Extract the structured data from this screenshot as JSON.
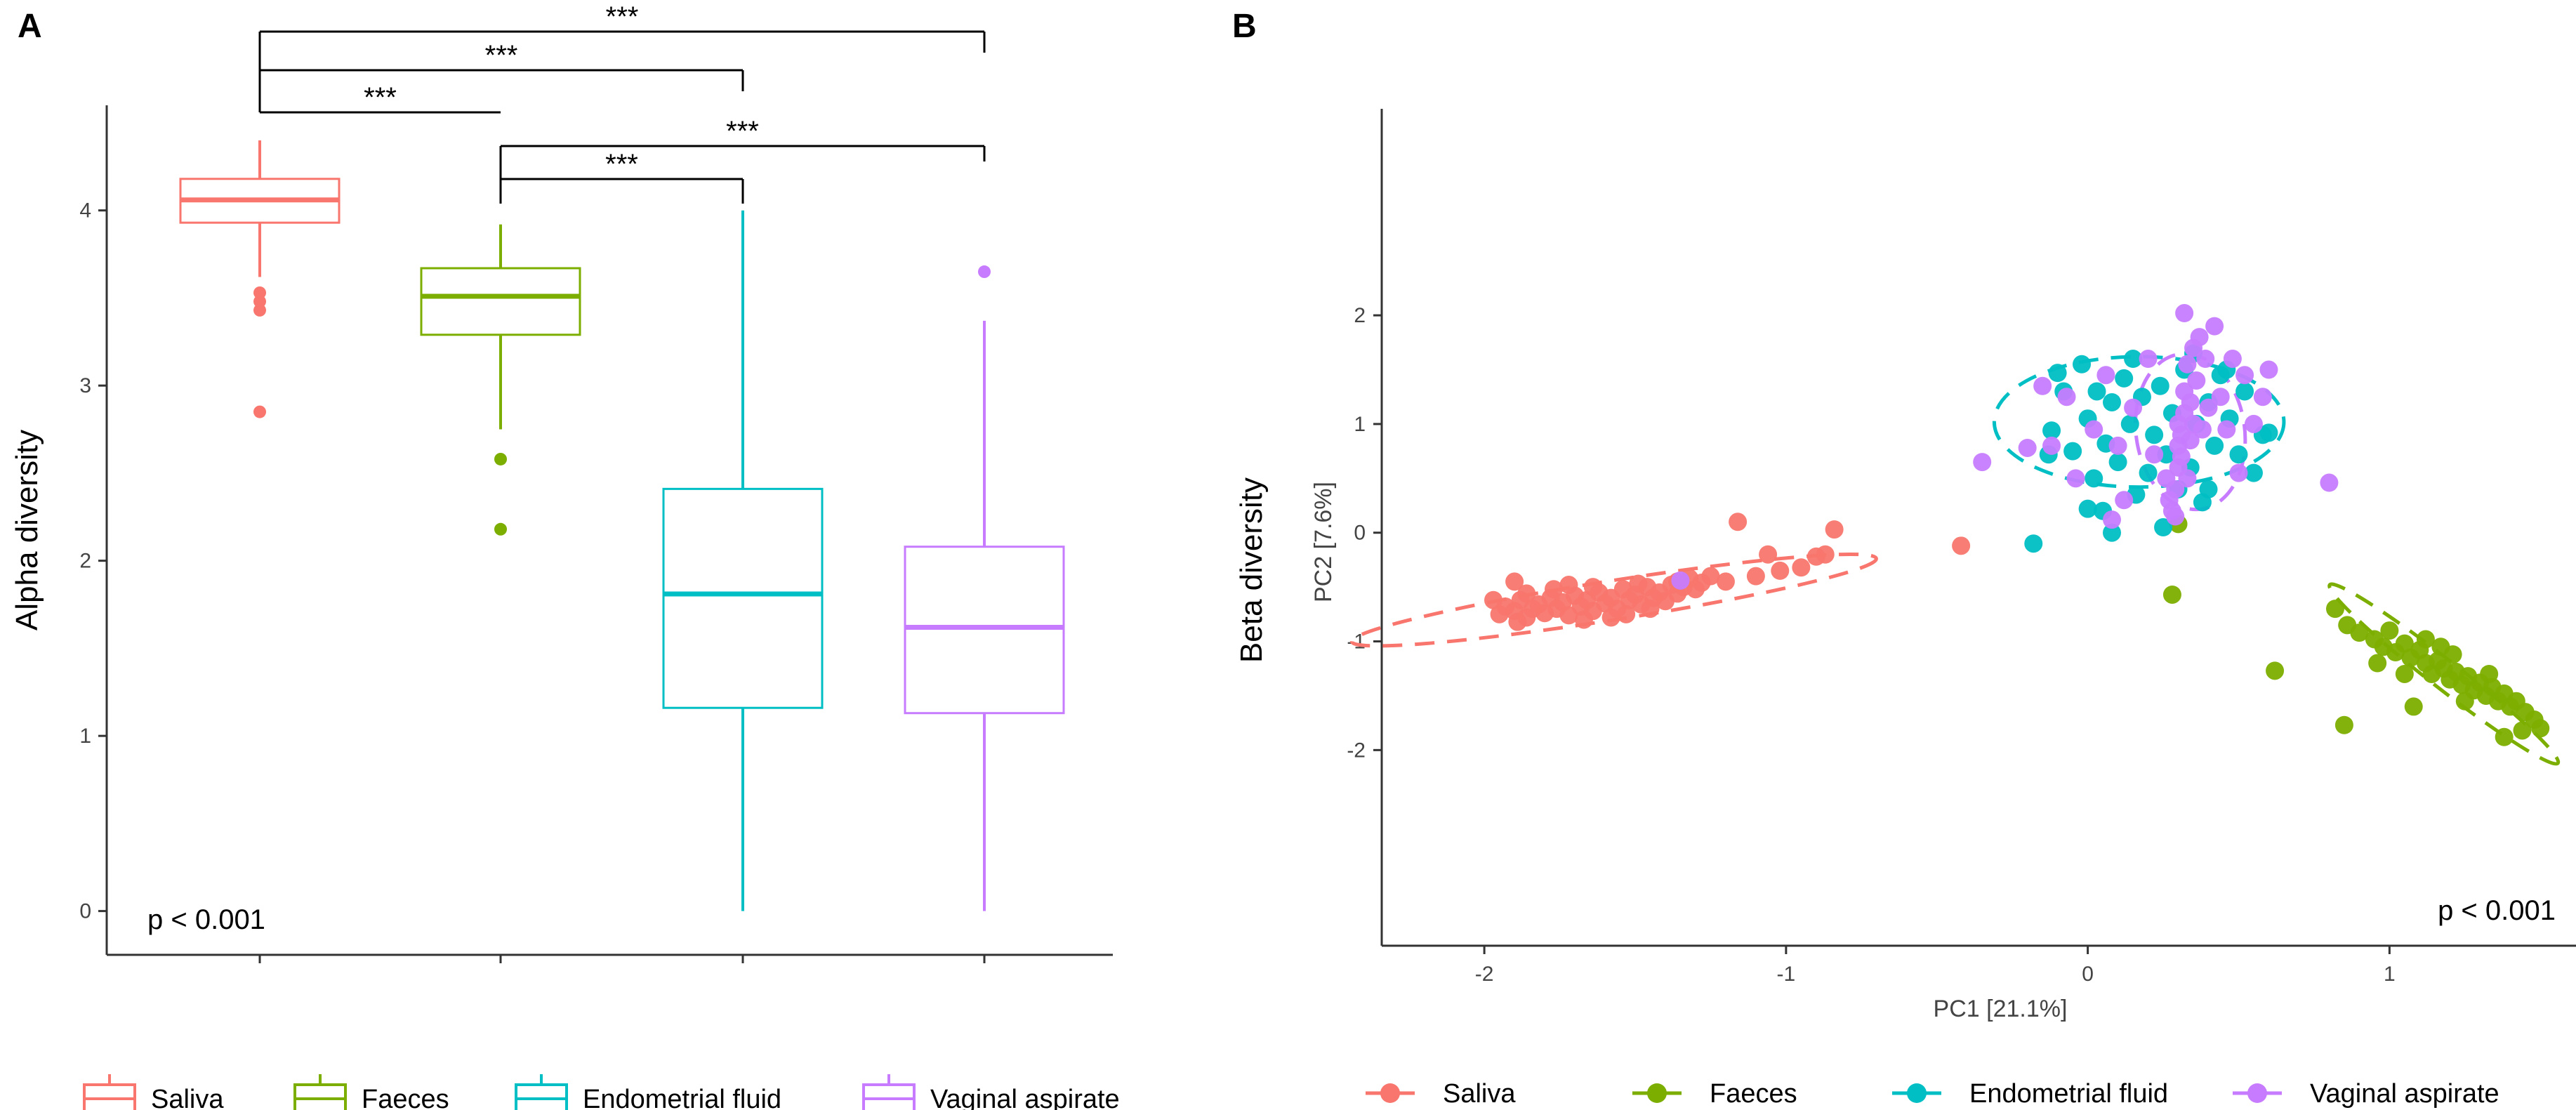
{
  "colors": {
    "saliva": "#f8766d",
    "faeces": "#7cae00",
    "endometrial": "#00bfc4",
    "vaginal": "#c77cff"
  },
  "chart_data": [
    {
      "panel": "A",
      "type": "box",
      "ylabel": "Alpha diversity",
      "xlabel": "",
      "ylim": [
        -0.25,
        4.6
      ],
      "yticks": [
        0,
        1,
        2,
        3,
        4
      ],
      "annotation": "p < 0.001",
      "categories": [
        "Saliva",
        "Faeces",
        "Endometrial fluid",
        "Vaginal aspirate"
      ],
      "color_keys": [
        "saliva",
        "faeces",
        "endometrial",
        "vaginal"
      ],
      "boxes": [
        {
          "name": "Saliva",
          "min": 3.62,
          "q1": 3.93,
          "median": 4.06,
          "q3": 4.18,
          "max": 4.4,
          "outliers": [
            3.53,
            3.48,
            3.43,
            2.85
          ]
        },
        {
          "name": "Faeces",
          "min": 2.75,
          "q1": 3.29,
          "median": 3.51,
          "q3": 3.67,
          "max": 3.92,
          "outliers": [
            2.58,
            2.18
          ]
        },
        {
          "name": "Endometrial fluid",
          "min": 0.0,
          "q1": 1.16,
          "median": 1.81,
          "q3": 2.41,
          "max": 4.0,
          "outliers": []
        },
        {
          "name": "Vaginal aspirate",
          "min": 0.0,
          "q1": 1.13,
          "median": 1.62,
          "q3": 2.08,
          "max": 3.37,
          "outliers": [
            3.65
          ]
        }
      ],
      "comparisons": [
        {
          "from": 0,
          "to": 1,
          "label": "***"
        },
        {
          "from": 0,
          "to": 2,
          "label": "***"
        },
        {
          "from": 0,
          "to": 3,
          "label": "***"
        },
        {
          "from": 1,
          "to": 2,
          "label": "***"
        },
        {
          "from": 1,
          "to": 3,
          "label": "***"
        }
      ],
      "legend": [
        "Saliva",
        "Faeces",
        "Endometrial fluid",
        "Vaginal aspirate"
      ]
    },
    {
      "panel": "B",
      "type": "scatter",
      "ylabel": "Beta diversity",
      "xlabel": "PC1   [21.1%]",
      "ylabel_inner": "PC2   [7.6%]",
      "xlim": [
        -2.34,
        1.66
      ],
      "ylim": [
        -3.8,
        3.9
      ],
      "xticks": [
        -2,
        -1,
        0,
        1
      ],
      "yticks": [
        -2,
        -1,
        0,
        1,
        2
      ],
      "annotation": "p < 0.001",
      "legend": [
        "Saliva",
        "Faeces",
        "Endometrial fluid",
        "Vaginal aspirate"
      ],
      "series": [
        {
          "name": "Saliva",
          "color_key": "saliva",
          "ellipse": {
            "cx": -1.57,
            "cy": -0.62,
            "rx": 0.88,
            "ry": 0.18,
            "angle_deg": 9
          },
          "points": [
            [
              -1.95,
              -0.75
            ],
            [
              -1.93,
              -0.68
            ],
            [
              -1.9,
              -0.72
            ],
            [
              -1.88,
              -0.62
            ],
            [
              -1.86,
              -0.78
            ],
            [
              -1.84,
              -0.7
            ],
            [
              -1.82,
              -0.66
            ],
            [
              -1.8,
              -0.74
            ],
            [
              -1.78,
              -0.6
            ],
            [
              -1.76,
              -0.7
            ],
            [
              -1.74,
              -0.64
            ],
            [
              -1.72,
              -0.76
            ],
            [
              -1.7,
              -0.58
            ],
            [
              -1.68,
              -0.68
            ],
            [
              -1.66,
              -0.62
            ],
            [
              -1.64,
              -0.72
            ],
            [
              -1.62,
              -0.55
            ],
            [
              -1.6,
              -0.65
            ],
            [
              -1.58,
              -0.6
            ],
            [
              -1.56,
              -0.7
            ],
            [
              -1.54,
              -0.52
            ],
            [
              -1.52,
              -0.62
            ],
            [
              -1.5,
              -0.57
            ],
            [
              -1.48,
              -0.66
            ],
            [
              -1.46,
              -0.5
            ],
            [
              -1.44,
              -0.6
            ],
            [
              -1.42,
              -0.55
            ],
            [
              -1.4,
              -0.63
            ],
            [
              -1.38,
              -0.48
            ],
            [
              -1.36,
              -0.56
            ],
            [
              -1.34,
              -0.5
            ],
            [
              -1.32,
              -0.42
            ],
            [
              -1.3,
              -0.52
            ],
            [
              -1.28,
              -0.46
            ],
            [
              -1.25,
              -0.4
            ],
            [
              -1.2,
              -0.45
            ],
            [
              -1.97,
              -0.62
            ],
            [
              -1.89,
              -0.82
            ],
            [
              -1.77,
              -0.52
            ],
            [
              -1.67,
              -0.8
            ],
            [
              -1.53,
              -0.75
            ],
            [
              -1.45,
              -0.7
            ],
            [
              -1.9,
              -0.45
            ],
            [
              -1.86,
              -0.56
            ],
            [
              -1.72,
              -0.48
            ],
            [
              -1.64,
              -0.5
            ],
            [
              -1.58,
              -0.78
            ],
            [
              -1.49,
              -0.47
            ],
            [
              -1.16,
              0.1
            ],
            [
              -1.02,
              -0.35
            ],
            [
              -0.95,
              -0.32
            ],
            [
              -0.9,
              -0.22
            ],
            [
              -0.87,
              -0.2
            ],
            [
              -0.84,
              0.03
            ],
            [
              -0.42,
              -0.12
            ],
            [
              -1.36,
              -0.45
            ],
            [
              -1.1,
              -0.4
            ],
            [
              -1.06,
              -0.2
            ]
          ]
        },
        {
          "name": "Faeces",
          "color_key": "faeces",
          "ellipse": {
            "cx": 1.18,
            "cy": -1.3,
            "rx": 0.48,
            "ry": 0.13,
            "angle_deg": -38
          },
          "points": [
            [
              0.28,
              -0.57
            ],
            [
              0.62,
              -1.27
            ],
            [
              0.85,
              -1.77
            ],
            [
              0.82,
              -0.7
            ],
            [
              0.86,
              -0.85
            ],
            [
              0.9,
              -0.92
            ],
            [
              0.95,
              -0.98
            ],
            [
              0.98,
              -1.05
            ],
            [
              1.0,
              -0.9
            ],
            [
              1.02,
              -1.1
            ],
            [
              1.05,
              -1.02
            ],
            [
              1.07,
              -1.15
            ],
            [
              1.1,
              -1.08
            ],
            [
              1.12,
              -1.2
            ],
            [
              1.14,
              -1.3
            ],
            [
              1.16,
              -1.18
            ],
            [
              1.18,
              -1.25
            ],
            [
              1.2,
              -1.35
            ],
            [
              1.22,
              -1.28
            ],
            [
              1.24,
              -1.4
            ],
            [
              1.26,
              -1.32
            ],
            [
              1.28,
              -1.45
            ],
            [
              1.3,
              -1.38
            ],
            [
              1.32,
              -1.5
            ],
            [
              1.34,
              -1.42
            ],
            [
              1.36,
              -1.55
            ],
            [
              1.38,
              -1.48
            ],
            [
              1.4,
              -1.6
            ],
            [
              1.42,
              -1.55
            ],
            [
              1.45,
              -1.65
            ],
            [
              1.48,
              -1.72
            ],
            [
              1.5,
              -1.8
            ],
            [
              1.44,
              -1.82
            ],
            [
              1.38,
              -1.88
            ],
            [
              1.08,
              -1.6
            ],
            [
              1.12,
              -0.98
            ],
            [
              0.96,
              -1.2
            ],
            [
              1.17,
              -1.05
            ],
            [
              1.25,
              -1.55
            ],
            [
              1.33,
              -1.3
            ],
            [
              1.05,
              -1.3
            ],
            [
              1.21,
              -1.12
            ],
            [
              0.3,
              0.08
            ]
          ]
        },
        {
          "name": "Endometrial fluid",
          "color_key": "endometrial",
          "ellipse": {
            "cx": 0.17,
            "cy": 1.02,
            "rx": 0.48,
            "ry": 0.6,
            "angle_deg": 0
          },
          "points": [
            [
              -0.18,
              -0.1
            ],
            [
              -0.12,
              0.94
            ],
            [
              -0.1,
              1.47
            ],
            [
              -0.08,
              1.3
            ],
            [
              -0.05,
              0.75
            ],
            [
              -0.02,
              1.55
            ],
            [
              0.0,
              1.05
            ],
            [
              0.02,
              0.5
            ],
            [
              0.05,
              0.2
            ],
            [
              0.06,
              0.82
            ],
            [
              0.08,
              1.2
            ],
            [
              0.1,
              0.65
            ],
            [
              0.12,
              1.42
            ],
            [
              0.14,
              1.0
            ],
            [
              0.16,
              0.35
            ],
            [
              0.18,
              1.25
            ],
            [
              0.2,
              0.55
            ],
            [
              0.22,
              0.9
            ],
            [
              0.24,
              1.35
            ],
            [
              0.26,
              0.72
            ],
            [
              0.28,
              1.1
            ],
            [
              0.3,
              0.4
            ],
            [
              0.32,
              1.5
            ],
            [
              0.34,
              0.6
            ],
            [
              0.36,
              1.0
            ],
            [
              0.38,
              0.28
            ],
            [
              0.4,
              1.2
            ],
            [
              0.42,
              0.8
            ],
            [
              0.44,
              1.45
            ],
            [
              0.47,
              1.05
            ],
            [
              0.5,
              0.72
            ],
            [
              0.52,
              1.3
            ],
            [
              0.55,
              0.55
            ],
            [
              0.58,
              0.9
            ],
            [
              0.6,
              0.92
            ],
            [
              -0.13,
              0.72
            ],
            [
              0.0,
              0.22
            ],
            [
              0.03,
              1.3
            ],
            [
              0.15,
              1.6
            ],
            [
              0.25,
              0.05
            ],
            [
              0.08,
              0.0
            ],
            [
              0.4,
              0.4
            ],
            [
              0.46,
              1.5
            ],
            [
              0.35,
              1.65
            ]
          ]
        },
        {
          "name": "Vaginal aspirate",
          "color_key": "vaginal",
          "ellipse": {
            "cx": 0.34,
            "cy": 0.93,
            "rx": 0.18,
            "ry": 0.72,
            "angle_deg": 8
          },
          "points": [
            [
              -0.35,
              0.65
            ],
            [
              -0.2,
              0.78
            ],
            [
              -0.15,
              1.35
            ],
            [
              -0.12,
              0.8
            ],
            [
              -0.07,
              1.25
            ],
            [
              -0.04,
              0.5
            ],
            [
              0.02,
              0.95
            ],
            [
              0.06,
              1.45
            ],
            [
              0.1,
              0.8
            ],
            [
              0.15,
              1.15
            ],
            [
              0.2,
              1.6
            ],
            [
              0.22,
              0.72
            ],
            [
              0.26,
              0.5
            ],
            [
              0.27,
              0.3
            ],
            [
              0.28,
              0.2
            ],
            [
              0.29,
              0.15
            ],
            [
              0.29,
              0.4
            ],
            [
              0.3,
              0.6
            ],
            [
              0.3,
              0.8
            ],
            [
              0.3,
              1.0
            ],
            [
              0.31,
              0.7
            ],
            [
              0.31,
              0.9
            ],
            [
              0.32,
              1.1
            ],
            [
              0.32,
              1.3
            ],
            [
              0.33,
              0.5
            ],
            [
              0.33,
              1.55
            ],
            [
              0.34,
              0.85
            ],
            [
              0.34,
              1.2
            ],
            [
              0.35,
              1.7
            ],
            [
              0.35,
              1.0
            ],
            [
              0.36,
              1.4
            ],
            [
              0.37,
              1.8
            ],
            [
              0.38,
              0.95
            ],
            [
              0.39,
              1.6
            ],
            [
              0.4,
              1.15
            ],
            [
              0.42,
              1.9
            ],
            [
              0.44,
              1.25
            ],
            [
              0.46,
              0.95
            ],
            [
              0.48,
              1.6
            ],
            [
              0.5,
              0.55
            ],
            [
              0.52,
              1.45
            ],
            [
              0.55,
              1.0
            ],
            [
              0.58,
              1.25
            ],
            [
              0.6,
              1.5
            ],
            [
              0.32,
              2.02
            ],
            [
              0.8,
              0.46
            ],
            [
              -1.35,
              -0.44
            ],
            [
              0.12,
              0.3
            ],
            [
              0.08,
              0.12
            ]
          ]
        }
      ]
    }
  ]
}
